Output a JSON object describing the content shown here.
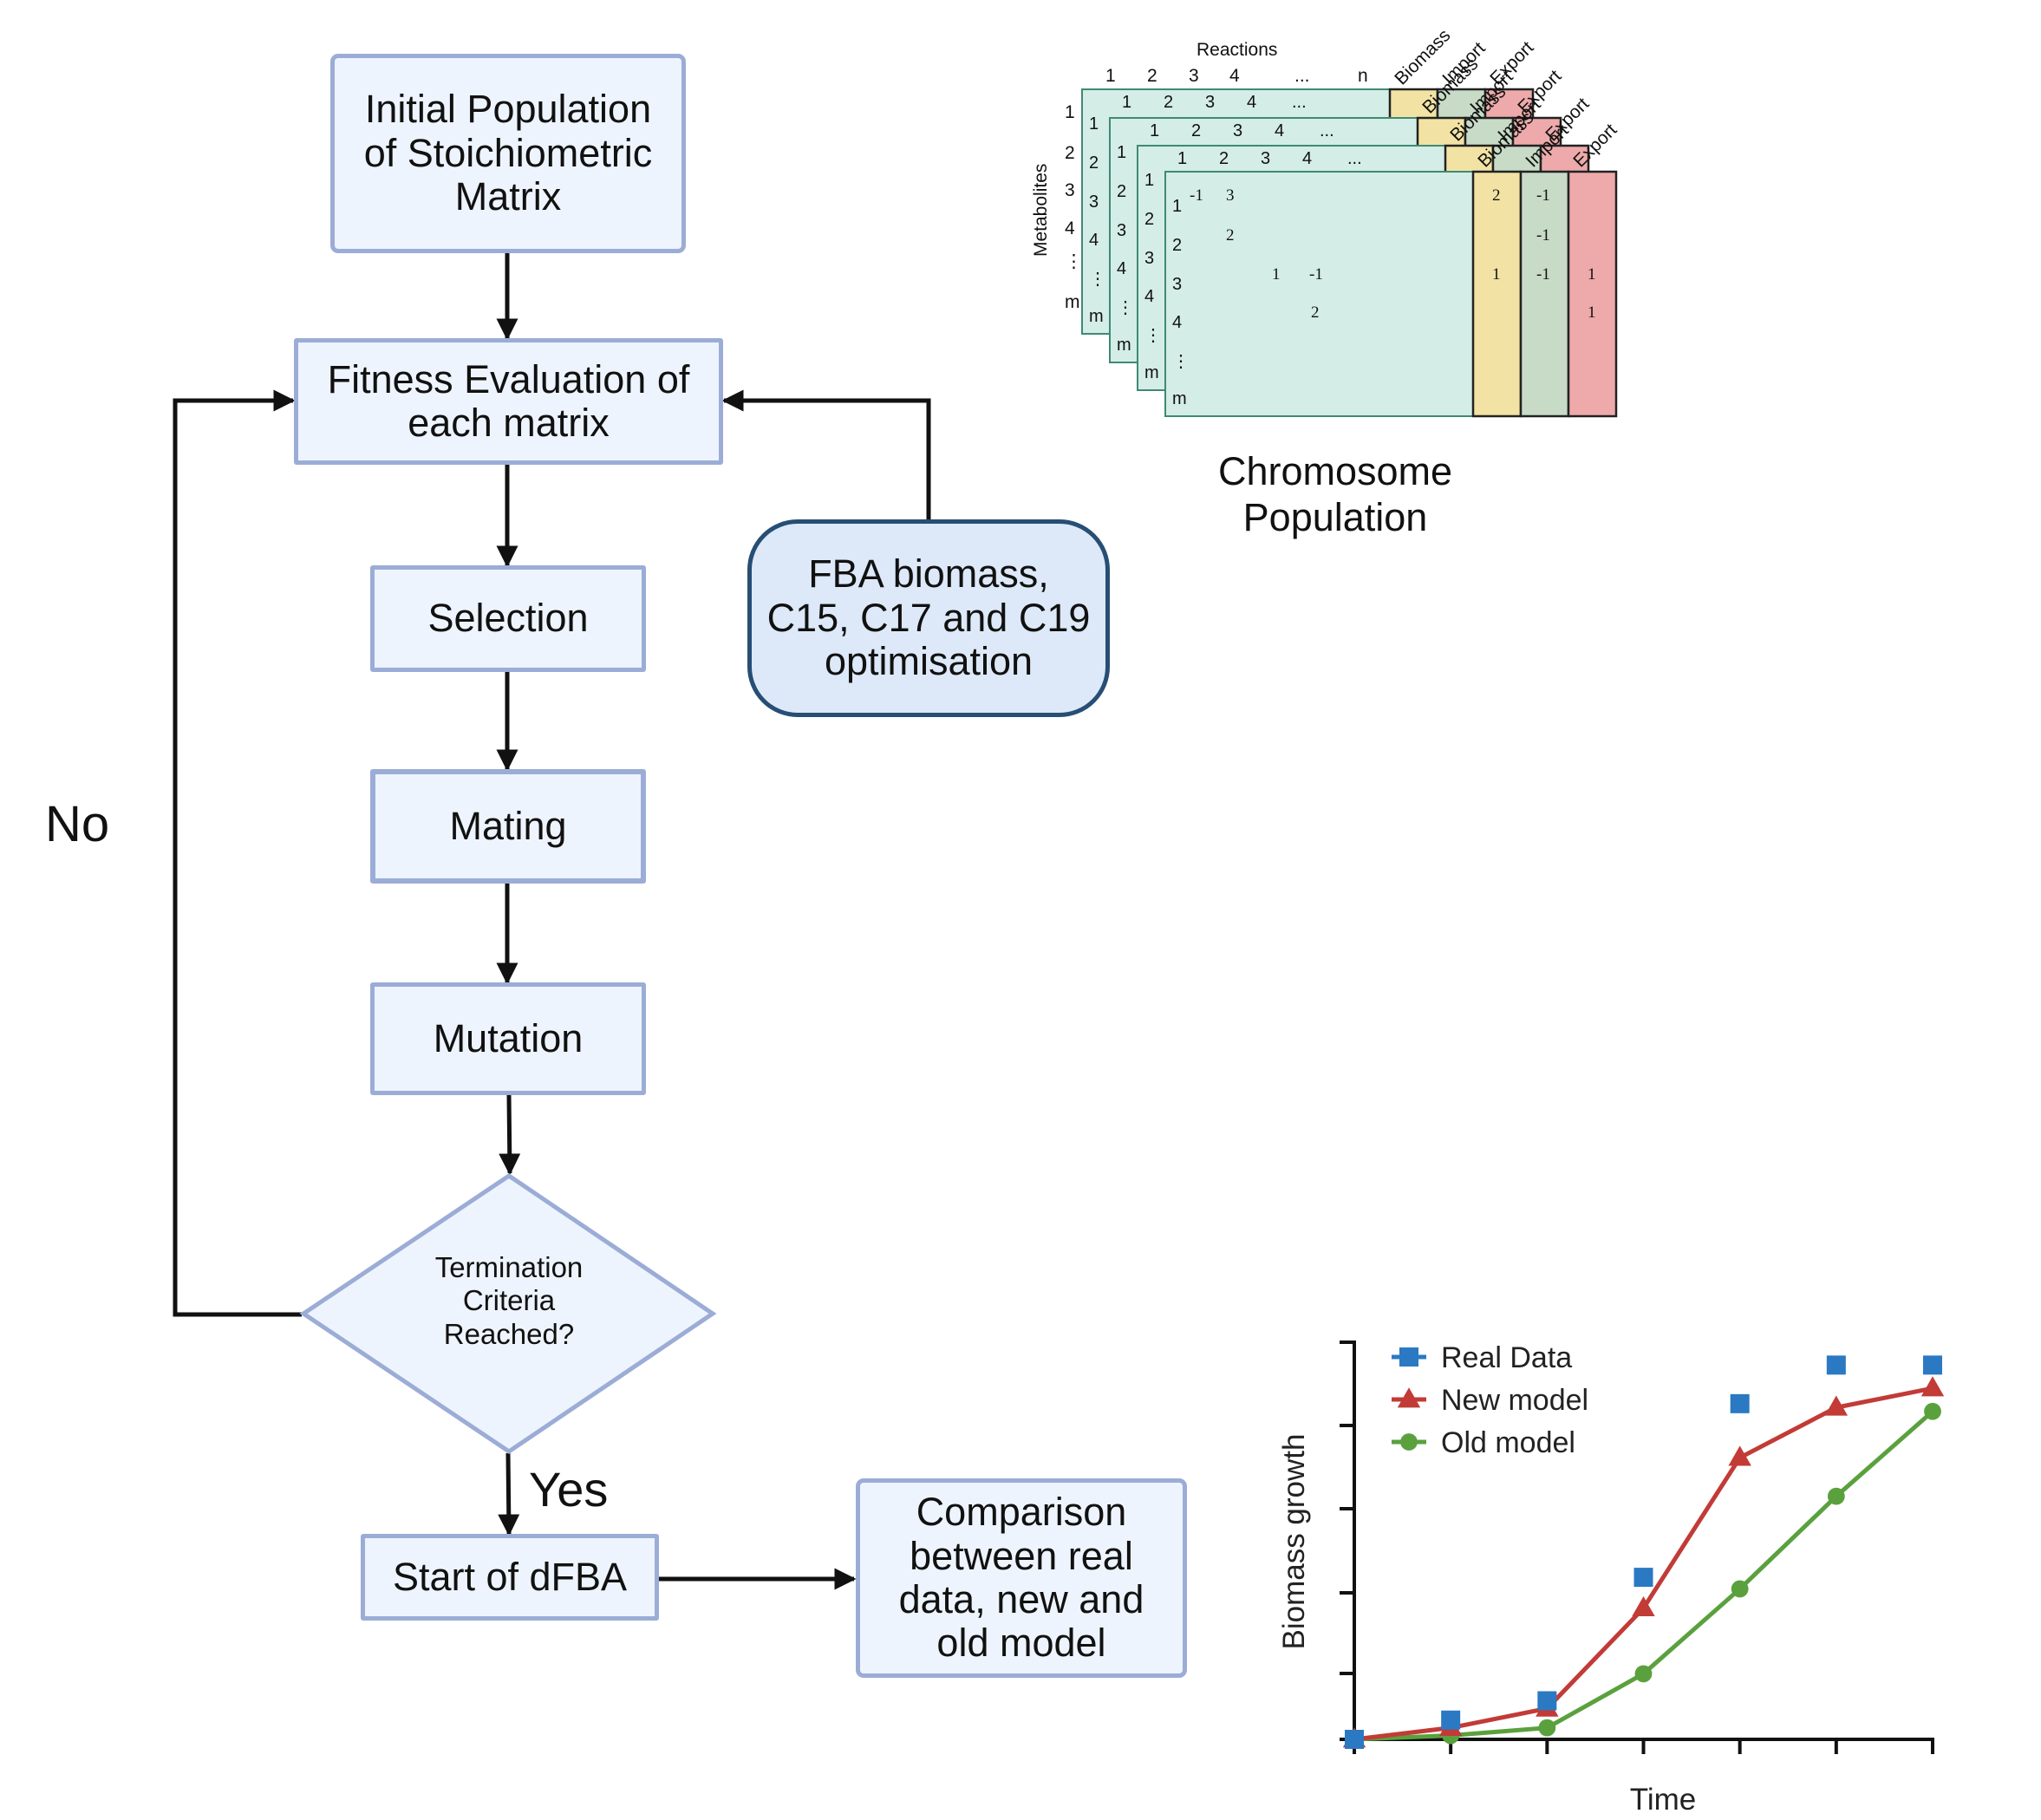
{
  "flowchart": {
    "initial_population": "Initial Population\nof Stoichiometric\nMatrix",
    "fitness_evaluation": "Fitness Evaluation of\neach matrix",
    "selection": "Selection",
    "mating": "Mating",
    "mutation": "Mutation",
    "termination": "Termination\nCriteria\nReached?",
    "start_dfba": "Start of dFBA",
    "comparison": "Comparison\nbetween real\ndata,  new and\nold model",
    "fba_optimisation": "FBA biomass,\nC15, C17 and C19\noptimisation",
    "no_label": "No",
    "yes_label": "Yes"
  },
  "matrix_figure": {
    "caption": "Chromosome\nPopulation",
    "reactions_label": "Reactions",
    "metabolites_label": "Metabolites",
    "column_numbers": [
      "1",
      "2",
      "3",
      "4",
      "...",
      "n"
    ],
    "row_numbers": [
      "1",
      "2",
      "3",
      "4",
      "⋮",
      "m"
    ],
    "extra_columns": [
      "Biomass",
      "Import",
      "Export"
    ],
    "front_entries": [
      "-1",
      "3",
      "2",
      "1",
      "-1",
      "2"
    ],
    "biomass_values": [
      "2",
      "1"
    ],
    "import_values": [
      "-1",
      "-1",
      "-1"
    ],
    "export_values": [
      "1",
      "1"
    ],
    "colors": {
      "matrix": "#d4ede6",
      "biomass": "#f2e3a4",
      "import": "#c7dbc7",
      "export": "#eeaaaa"
    }
  },
  "chart_data": {
    "type": "line",
    "xlabel": "Time",
    "ylabel": "Biomass growth",
    "x": [
      0,
      1,
      2,
      3,
      4,
      5,
      6
    ],
    "xlim": [
      0,
      6
    ],
    "ylim": [
      0,
      1
    ],
    "grid": false,
    "legend": "top-left",
    "series": [
      {
        "name": "Real Data",
        "marker": "square",
        "line": false,
        "color": "#2b79c2",
        "values": [
          0.0,
          0.05,
          0.1,
          0.42,
          0.87,
          0.97,
          0.97
        ]
      },
      {
        "name": "New model",
        "marker": "triangle",
        "line": true,
        "color": "#c23b36",
        "values": [
          0.0,
          0.03,
          0.08,
          0.34,
          0.73,
          0.86,
          0.91
        ]
      },
      {
        "name": "Old model",
        "marker": "circle",
        "line": true,
        "color": "#5aa13e",
        "values": [
          0.0,
          0.01,
          0.03,
          0.17,
          0.39,
          0.63,
          0.85
        ]
      }
    ]
  }
}
